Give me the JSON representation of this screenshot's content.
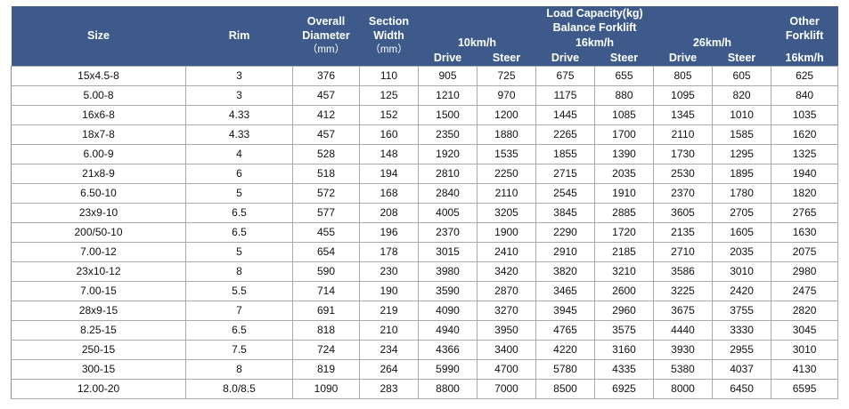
{
  "header": {
    "size": "Size",
    "rim": "Rim",
    "overall_diameter_line1": "Overall",
    "overall_diameter_line2": "Diameter",
    "overall_diameter_unit": "（mm）",
    "section_width_line1": "Section",
    "section_width_line2": "Width",
    "section_width_unit": "（mm）",
    "load_capacity_line1": "Load Capacity(kg)",
    "load_capacity_line2": "Balance Forklift",
    "speed_10": "10km/h",
    "speed_16": "16km/h",
    "speed_26": "26km/h",
    "other_line1": "Other",
    "other_line2": "Forklift",
    "other_speed": "16km/h",
    "drive": "Drive",
    "steer": "Steer"
  },
  "rows": [
    [
      "15x4.5-8",
      "3",
      "376",
      "110",
      "905",
      "725",
      "675",
      "655",
      "805",
      "605",
      "625"
    ],
    [
      "5.00-8",
      "3",
      "457",
      "125",
      "1210",
      "970",
      "1175",
      "880",
      "1095",
      "820",
      "840"
    ],
    [
      "16x6-8",
      "4.33",
      "412",
      "152",
      "1500",
      "1200",
      "1445",
      "1085",
      "1345",
      "1010",
      "1035"
    ],
    [
      "18x7-8",
      "4.33",
      "457",
      "160",
      "2350",
      "1880",
      "2265",
      "1700",
      "2110",
      "1585",
      "1620"
    ],
    [
      "6.00-9",
      "4",
      "528",
      "148",
      "1920",
      "1535",
      "1855",
      "1390",
      "1730",
      "1295",
      "1325"
    ],
    [
      "21x8-9",
      "6",
      "518",
      "194",
      "2810",
      "2250",
      "2715",
      "2035",
      "2530",
      "1895",
      "1940"
    ],
    [
      "6.50-10",
      "5",
      "572",
      "168",
      "2840",
      "2110",
      "2545",
      "1910",
      "2370",
      "1780",
      "1820"
    ],
    [
      "23x9-10",
      "6.5",
      "577",
      "208",
      "4005",
      "3205",
      "3845",
      "2885",
      "3605",
      "2705",
      "2765"
    ],
    [
      "200/50-10",
      "6.5",
      "455",
      "196",
      "2370",
      "1900",
      "2290",
      "1720",
      "2135",
      "1605",
      "1630"
    ],
    [
      "7.00-12",
      "5",
      "654",
      "178",
      "3015",
      "2410",
      "2910",
      "2185",
      "2710",
      "2035",
      "2075"
    ],
    [
      "23x10-12",
      "8",
      "590",
      "230",
      "3980",
      "3420",
      "3820",
      "3210",
      "3586",
      "3010",
      "2980"
    ],
    [
      "7.00-15",
      "5.5",
      "714",
      "190",
      "3590",
      "2870",
      "3465",
      "2600",
      "3225",
      "2420",
      "2475"
    ],
    [
      "28x9-15",
      "7",
      "691",
      "219",
      "4090",
      "3270",
      "3945",
      "2960",
      "3675",
      "3755",
      "2820"
    ],
    [
      "8.25-15",
      "6.5",
      "818",
      "210",
      "4940",
      "3950",
      "4765",
      "3575",
      "4440",
      "3330",
      "3045"
    ],
    [
      "250-15",
      "7.5",
      "724",
      "234",
      "4366",
      "3400",
      "4220",
      "3160",
      "3930",
      "2955",
      "3010"
    ],
    [
      "300-15",
      "8",
      "819",
      "264",
      "5990",
      "4700",
      "5780",
      "4335",
      "5380",
      "4037",
      "4130"
    ],
    [
      "12.00-20",
      "8.0/8.5",
      "1090",
      "283",
      "8800",
      "7000",
      "8500",
      "6925",
      "8000",
      "6450",
      "6595"
    ]
  ]
}
